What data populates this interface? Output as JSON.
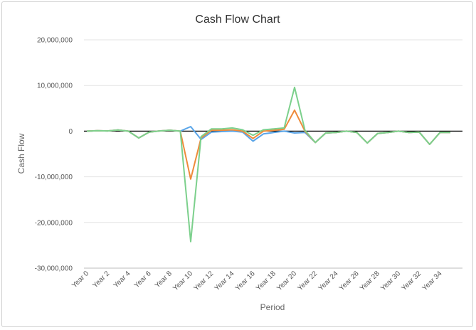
{
  "chart_data": {
    "type": "line",
    "title": "Cash Flow Chart",
    "xlabel": "Period",
    "ylabel": "Cash Flow",
    "ylim": [
      -30000000,
      20000000
    ],
    "yticks": [
      20000000,
      10000000,
      0,
      -10000000,
      -20000000,
      -30000000
    ],
    "ytick_labels": [
      "20,000,000",
      "10,000,000",
      "0",
      "-10,000,000",
      "-20,000,000",
      "-30,000,000"
    ],
    "categories": [
      "Year 0",
      "Year 1",
      "Year 2",
      "Year 3",
      "Year 4",
      "Year 5",
      "Year 6",
      "Year 7",
      "Year 8",
      "Year 9",
      "Year 10",
      "Year 11",
      "Year 12",
      "Year 13",
      "Year 14",
      "Year 15",
      "Year 16",
      "Year 17",
      "Year 18",
      "Year 19",
      "Year 20",
      "Year 21",
      "Year 22",
      "Year 23",
      "Year 24",
      "Year 25",
      "Year 26",
      "Year 27",
      "Year 28",
      "Year 29",
      "Year 30",
      "Year 31",
      "Year 32",
      "Year 33",
      "Year 34",
      "Year 35"
    ],
    "xtick_labels": [
      "Year 0",
      "Year 2",
      "Year 4",
      "Year 6",
      "Year 8",
      "Year 10",
      "Year 12",
      "Year 14",
      "Year 16",
      "Year 18",
      "Year 20",
      "Year 22",
      "Year 24",
      "Year 26",
      "Year 28",
      "Year 30",
      "Year 32",
      "Year 34"
    ],
    "grid": true,
    "legend": "none",
    "series": [
      {
        "color": "#5aa5e8",
        "values": [
          0,
          100000,
          50000,
          250000,
          0,
          -1500000,
          -200000,
          50000,
          200000,
          0,
          1000000,
          -1800000,
          -200000,
          -100000,
          0,
          -200000,
          -2200000,
          -600000,
          -300000,
          0,
          -400000,
          -300000,
          -2500000,
          -400000,
          -300000,
          0,
          -300000,
          -2600000,
          -500000,
          -300000,
          0,
          -300000,
          -200000,
          -2900000,
          -300000,
          -300000
        ]
      },
      {
        "color": "#ee8b3a",
        "values": [
          0,
          100000,
          50000,
          250000,
          0,
          -1500000,
          -200000,
          50000,
          200000,
          0,
          -10500000,
          -1500000,
          200000,
          200000,
          300000,
          0,
          -1600000,
          0,
          200000,
          400000,
          4600000,
          0,
          -2500000,
          -400000,
          -300000,
          0,
          -300000,
          -2600000,
          -500000,
          -300000,
          0,
          -300000,
          -200000,
          -2900000,
          -300000,
          -300000
        ]
      },
      {
        "color": "#7cd08c",
        "values": [
          0,
          100000,
          50000,
          250000,
          0,
          -1500000,
          -200000,
          50000,
          200000,
          0,
          -24200000,
          -1200000,
          500000,
          500000,
          700000,
          300000,
          -900000,
          300000,
          500000,
          700000,
          9600000,
          200000,
          -2500000,
          -400000,
          -300000,
          0,
          -300000,
          -2600000,
          -500000,
          -300000,
          0,
          -300000,
          -200000,
          -2900000,
          -300000,
          -300000
        ]
      }
    ]
  }
}
